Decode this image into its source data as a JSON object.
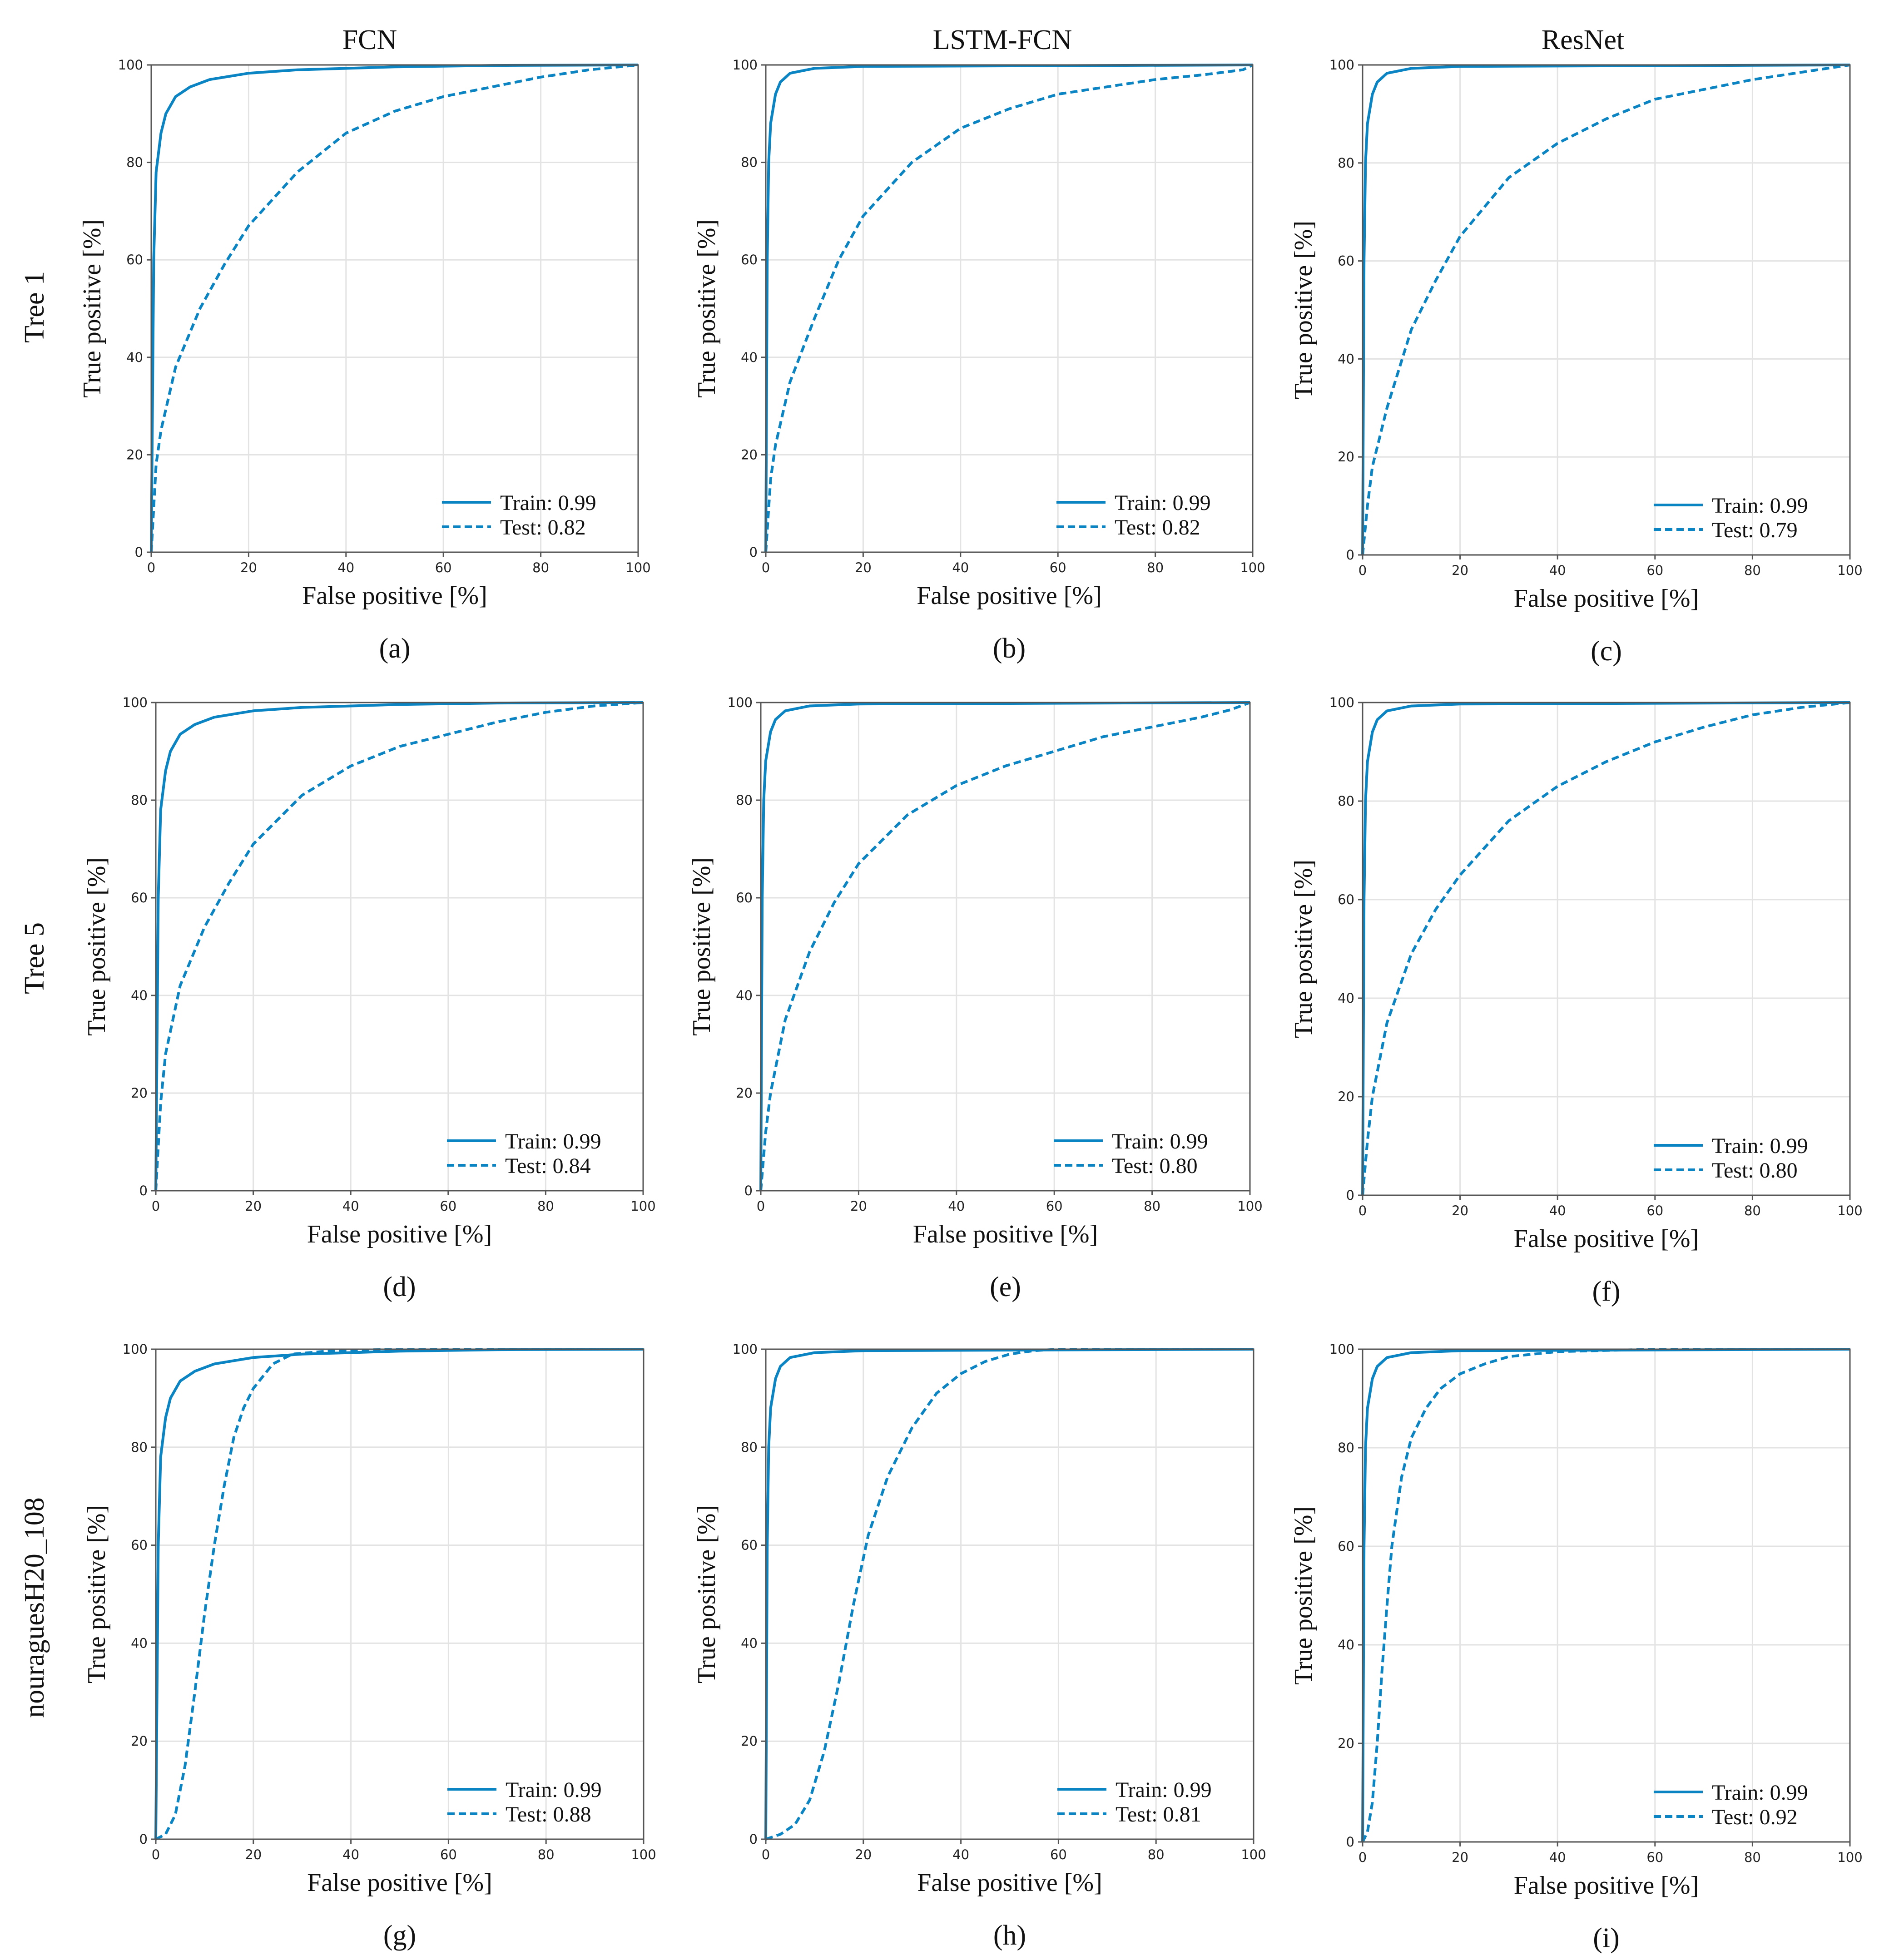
{
  "figure": {
    "column_titles": [
      "FCN",
      "LSTM-FCN",
      "ResNet"
    ],
    "row_titles": [
      "Tree 1",
      "Tree 5",
      "nouraguesH20_108"
    ],
    "colors": {
      "curve": "#0a84c2",
      "grid": "#e3e3e3",
      "frame": "#555555",
      "text": "#111111"
    }
  },
  "chart_data": [
    {
      "type": "line",
      "panel_label": "(a)",
      "xlabel": "False positive [%]",
      "ylabel": "True positive [%]",
      "xlim": [
        0,
        100
      ],
      "ylim": [
        0,
        100
      ],
      "xticks": [
        0,
        20,
        40,
        60,
        80,
        100
      ],
      "yticks": [
        0,
        20,
        40,
        60,
        80,
        100
      ],
      "grid": true,
      "legend_position": "lower-right",
      "series": [
        {
          "name": "Train",
          "auc_label": "0.99",
          "style": "solid",
          "x": [
            0,
            0.5,
            1,
            2,
            3,
            5,
            8,
            12,
            20,
            30,
            50,
            70,
            100
          ],
          "y": [
            0,
            60,
            78,
            86,
            90,
            93.5,
            95.5,
            97,
            98.3,
            99,
            99.6,
            99.9,
            100
          ]
        },
        {
          "name": "Test",
          "auc_label": "0.82",
          "style": "dashed",
          "x": [
            0,
            1,
            2,
            5,
            10,
            15,
            20,
            30,
            40,
            50,
            60,
            70,
            80,
            90,
            100
          ],
          "y": [
            0,
            18,
            25,
            38,
            50,
            59,
            67,
            78,
            86,
            90.5,
            93.5,
            95.5,
            97.5,
            99,
            100
          ]
        }
      ]
    },
    {
      "type": "line",
      "panel_label": "(b)",
      "xlabel": "False positive [%]",
      "ylabel": "True positive [%]",
      "xlim": [
        0,
        100
      ],
      "ylim": [
        0,
        100
      ],
      "xticks": [
        0,
        20,
        40,
        60,
        80,
        100
      ],
      "yticks": [
        0,
        20,
        40,
        60,
        80,
        100
      ],
      "grid": true,
      "legend_position": "lower-right",
      "series": [
        {
          "name": "Train",
          "auc_label": "0.99",
          "style": "solid",
          "x": [
            0,
            0.3,
            0.6,
            1,
            2,
            3,
            5,
            10,
            20,
            100
          ],
          "y": [
            0,
            60,
            80,
            88,
            94,
            96.5,
            98.3,
            99.3,
            99.7,
            100
          ]
        },
        {
          "name": "Test",
          "auc_label": "0.82",
          "style": "dashed",
          "x": [
            0,
            1,
            2,
            5,
            10,
            15,
            20,
            30,
            40,
            50,
            60,
            70,
            80,
            90,
            98,
            100
          ],
          "y": [
            0,
            15,
            22,
            35,
            48,
            60,
            69,
            80,
            87,
            91,
            94,
            95.5,
            97,
            98,
            99,
            100
          ]
        }
      ]
    },
    {
      "type": "line",
      "panel_label": "(c)",
      "xlabel": "False positive [%]",
      "ylabel": "True positive [%]",
      "xlim": [
        0,
        100
      ],
      "ylim": [
        0,
        100
      ],
      "xticks": [
        0,
        20,
        40,
        60,
        80,
        100
      ],
      "yticks": [
        0,
        20,
        40,
        60,
        80,
        100
      ],
      "grid": true,
      "legend_position": "lower-right",
      "series": [
        {
          "name": "Train",
          "auc_label": "0.99",
          "style": "solid",
          "x": [
            0,
            0.3,
            0.6,
            1,
            2,
            3,
            5,
            10,
            20,
            100
          ],
          "y": [
            0,
            60,
            80,
            88,
            94,
            96.5,
            98.3,
            99.3,
            99.7,
            100
          ]
        },
        {
          "name": "Test",
          "auc_label": "0.79",
          "style": "dashed",
          "x": [
            0,
            1,
            2,
            5,
            10,
            15,
            20,
            30,
            40,
            50,
            60,
            70,
            80,
            90,
            100
          ],
          "y": [
            0,
            10,
            18,
            30,
            46,
            56,
            65,
            77,
            84,
            89,
            93,
            95,
            97,
            98.5,
            100
          ]
        }
      ]
    },
    {
      "type": "line",
      "panel_label": "(d)",
      "xlabel": "False positive [%]",
      "ylabel": "True positive [%]",
      "xlim": [
        0,
        100
      ],
      "ylim": [
        0,
        100
      ],
      "xticks": [
        0,
        20,
        40,
        60,
        80,
        100
      ],
      "yticks": [
        0,
        20,
        40,
        60,
        80,
        100
      ],
      "grid": true,
      "legend_position": "lower-right",
      "series": [
        {
          "name": "Train",
          "auc_label": "0.99",
          "style": "solid",
          "x": [
            0,
            0.5,
            1,
            2,
            3,
            5,
            8,
            12,
            20,
            30,
            50,
            70,
            100
          ],
          "y": [
            0,
            60,
            78,
            86,
            90,
            93.5,
            95.5,
            97,
            98.3,
            99,
            99.6,
            99.9,
            100
          ]
        },
        {
          "name": "Test",
          "auc_label": "0.84",
          "style": "dashed",
          "x": [
            0,
            1,
            2,
            5,
            10,
            15,
            20,
            30,
            40,
            50,
            60,
            70,
            80,
            90,
            100
          ],
          "y": [
            0,
            18,
            28,
            42,
            54,
            63,
            71,
            81,
            87,
            91,
            93.5,
            96,
            98,
            99.3,
            100
          ]
        }
      ]
    },
    {
      "type": "line",
      "panel_label": "(e)",
      "xlabel": "False positive [%]",
      "ylabel": "True positive [%]",
      "xlim": [
        0,
        100
      ],
      "ylim": [
        0,
        100
      ],
      "xticks": [
        0,
        20,
        40,
        60,
        80,
        100
      ],
      "yticks": [
        0,
        20,
        40,
        60,
        80,
        100
      ],
      "grid": true,
      "legend_position": "lower-right",
      "series": [
        {
          "name": "Train",
          "auc_label": "0.99",
          "style": "solid",
          "x": [
            0,
            0.3,
            0.6,
            1,
            2,
            3,
            5,
            10,
            20,
            100
          ],
          "y": [
            0,
            60,
            80,
            88,
            94,
            96.5,
            98.3,
            99.3,
            99.7,
            100
          ]
        },
        {
          "name": "Test",
          "auc_label": "0.80",
          "style": "dashed",
          "x": [
            0,
            1,
            2,
            5,
            10,
            15,
            20,
            30,
            40,
            50,
            60,
            70,
            80,
            90,
            96,
            100
          ],
          "y": [
            0,
            12,
            20,
            35,
            49,
            59,
            67,
            77,
            83,
            87,
            90,
            93,
            95,
            97,
            98.5,
            100
          ]
        }
      ]
    },
    {
      "type": "line",
      "panel_label": "(f)",
      "xlabel": "False positive [%]",
      "ylabel": "True positive [%]",
      "xlim": [
        0,
        100
      ],
      "ylim": [
        0,
        100
      ],
      "xticks": [
        0,
        20,
        40,
        60,
        80,
        100
      ],
      "yticks": [
        0,
        20,
        40,
        60,
        80,
        100
      ],
      "grid": true,
      "legend_position": "lower-right",
      "series": [
        {
          "name": "Train",
          "auc_label": "0.99",
          "style": "solid",
          "x": [
            0,
            0.3,
            0.6,
            1,
            2,
            3,
            5,
            10,
            20,
            100
          ],
          "y": [
            0,
            60,
            80,
            88,
            94,
            96.5,
            98.3,
            99.3,
            99.7,
            100
          ]
        },
        {
          "name": "Test",
          "auc_label": "0.80",
          "style": "dashed",
          "x": [
            0,
            1,
            2,
            5,
            10,
            15,
            20,
            30,
            40,
            50,
            60,
            70,
            80,
            90,
            100
          ],
          "y": [
            0,
            11,
            20,
            35,
            49,
            58,
            65,
            76,
            83,
            88,
            92,
            95,
            97.5,
            99,
            100
          ]
        }
      ]
    },
    {
      "type": "line",
      "panel_label": "(g)",
      "xlabel": "False positive [%]",
      "ylabel": "True positive [%]",
      "xlim": [
        0,
        100
      ],
      "ylim": [
        0,
        100
      ],
      "xticks": [
        0,
        20,
        40,
        60,
        80,
        100
      ],
      "yticks": [
        0,
        20,
        40,
        60,
        80,
        100
      ],
      "grid": true,
      "legend_position": "lower-right",
      "series": [
        {
          "name": "Train",
          "auc_label": "0.99",
          "style": "solid",
          "x": [
            0,
            0.5,
            1,
            2,
            3,
            5,
            8,
            12,
            20,
            30,
            50,
            70,
            100
          ],
          "y": [
            0,
            60,
            78,
            86,
            90,
            93.5,
            95.5,
            97,
            98.3,
            99,
            99.6,
            99.9,
            100
          ]
        },
        {
          "name": "Test",
          "auc_label": "0.88",
          "style": "dashed",
          "x": [
            0,
            2,
            4,
            6,
            8,
            10,
            12,
            14,
            16,
            18,
            20,
            24,
            28,
            35,
            45,
            60,
            100
          ],
          "y": [
            0,
            1,
            5,
            15,
            30,
            46,
            60,
            72,
            82,
            88,
            92,
            97,
            99,
            99.6,
            99.9,
            100,
            100
          ]
        }
      ]
    },
    {
      "type": "line",
      "panel_label": "(h)",
      "xlabel": "False positive [%]",
      "ylabel": "True positive [%]",
      "xlim": [
        0,
        100
      ],
      "ylim": [
        0,
        100
      ],
      "xticks": [
        0,
        20,
        40,
        60,
        80,
        100
      ],
      "yticks": [
        0,
        20,
        40,
        60,
        80,
        100
      ],
      "grid": true,
      "legend_position": "lower-right",
      "series": [
        {
          "name": "Train",
          "auc_label": "0.99",
          "style": "solid",
          "x": [
            0,
            0.3,
            0.6,
            1,
            2,
            3,
            5,
            10,
            20,
            100
          ],
          "y": [
            0,
            60,
            80,
            88,
            94,
            96.5,
            98.3,
            99.3,
            99.7,
            100
          ]
        },
        {
          "name": "Test",
          "auc_label": "0.81",
          "style": "dashed",
          "x": [
            0,
            3,
            6,
            9,
            12,
            15,
            18,
            21,
            25,
            30,
            35,
            40,
            45,
            50,
            55,
            60,
            100
          ],
          "y": [
            0,
            1,
            3,
            8,
            18,
            32,
            48,
            62,
            74,
            84,
            91,
            95,
            97.5,
            99,
            99.7,
            100,
            100
          ]
        }
      ]
    },
    {
      "type": "line",
      "panel_label": "(i)",
      "xlabel": "False positive [%]",
      "ylabel": "True positive [%]",
      "xlim": [
        0,
        100
      ],
      "ylim": [
        0,
        100
      ],
      "xticks": [
        0,
        20,
        40,
        60,
        80,
        100
      ],
      "yticks": [
        0,
        20,
        40,
        60,
        80,
        100
      ],
      "grid": true,
      "legend_position": "lower-right",
      "series": [
        {
          "name": "Train",
          "auc_label": "0.99",
          "style": "solid",
          "x": [
            0,
            0.3,
            0.6,
            1,
            2,
            3,
            5,
            10,
            20,
            100
          ],
          "y": [
            0,
            60,
            80,
            88,
            94,
            96.5,
            98.3,
            99.3,
            99.7,
            100
          ]
        },
        {
          "name": "Test",
          "auc_label": "0.92",
          "style": "dashed",
          "x": [
            0,
            1,
            2,
            3,
            4,
            5,
            6,
            8,
            10,
            13,
            16,
            20,
            25,
            30,
            40,
            60,
            100
          ],
          "y": [
            0,
            2,
            8,
            20,
            35,
            48,
            60,
            74,
            82,
            88,
            92,
            95,
            97,
            98.5,
            99.5,
            100,
            100
          ]
        }
      ]
    }
  ]
}
